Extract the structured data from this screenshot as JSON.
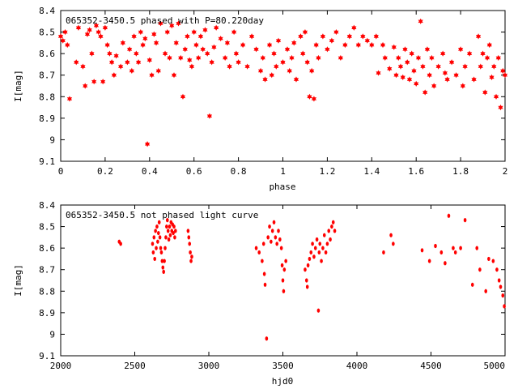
{
  "chart_data": [
    {
      "type": "scatter",
      "title": "065352-3450.5 phased with P=80.220day",
      "xlabel": "phase",
      "ylabel": "I[mag]",
      "xlim": [
        0,
        2
      ],
      "ylim": [
        8.4,
        9.1
      ],
      "y_inverted": true,
      "x_ticks": [
        "0",
        "0.2",
        "0.4",
        "0.6",
        "0.8",
        "1",
        "1.2",
        "1.4",
        "1.6",
        "1.8",
        "2"
      ],
      "y_ticks": [
        "8.4",
        "8.5",
        "8.6",
        "8.7",
        "8.8",
        "8.9",
        "9",
        "9.1"
      ],
      "marker": "star",
      "color": "#ff0000",
      "points": [
        [
          0.0,
          8.52
        ],
        [
          0.01,
          8.54
        ],
        [
          0.02,
          8.5
        ],
        [
          0.03,
          8.56
        ],
        [
          0.04,
          8.81
        ],
        [
          0.07,
          8.64
        ],
        [
          0.08,
          8.48
        ],
        [
          0.1,
          8.66
        ],
        [
          0.11,
          8.75
        ],
        [
          0.12,
          8.51
        ],
        [
          0.13,
          8.49
        ],
        [
          0.14,
          8.6
        ],
        [
          0.15,
          8.73
        ],
        [
          0.16,
          8.47
        ],
        [
          0.17,
          8.5
        ],
        [
          0.18,
          8.52
        ],
        [
          0.19,
          8.73
        ],
        [
          0.2,
          8.48
        ],
        [
          0.21,
          8.56
        ],
        [
          0.22,
          8.6
        ],
        [
          0.23,
          8.64
        ],
        [
          0.24,
          8.7
        ],
        [
          0.25,
          8.61
        ],
        [
          0.27,
          8.66
        ],
        [
          0.28,
          8.55
        ],
        [
          0.3,
          8.64
        ],
        [
          0.31,
          8.58
        ],
        [
          0.32,
          8.68
        ],
        [
          0.33,
          8.52
        ],
        [
          0.34,
          8.6
        ],
        [
          0.35,
          8.64
        ],
        [
          0.36,
          8.5
        ],
        [
          0.37,
          8.56
        ],
        [
          0.38,
          8.53
        ],
        [
          0.39,
          9.02
        ],
        [
          0.4,
          8.63
        ],
        [
          0.41,
          8.7
        ],
        [
          0.42,
          8.51
        ],
        [
          0.43,
          8.55
        ],
        [
          0.44,
          8.68
        ],
        [
          0.45,
          8.46
        ],
        [
          0.47,
          8.6
        ],
        [
          0.48,
          8.5
        ],
        [
          0.49,
          8.62
        ],
        [
          0.5,
          8.47
        ],
        [
          0.51,
          8.7
        ],
        [
          0.52,
          8.55
        ],
        [
          0.53,
          8.46
        ],
        [
          0.54,
          8.62
        ],
        [
          0.55,
          8.8
        ],
        [
          0.56,
          8.58
        ],
        [
          0.57,
          8.52
        ],
        [
          0.58,
          8.63
        ],
        [
          0.59,
          8.66
        ],
        [
          0.6,
          8.5
        ],
        [
          0.61,
          8.56
        ],
        [
          0.62,
          8.62
        ],
        [
          0.63,
          8.52
        ],
        [
          0.64,
          8.58
        ],
        [
          0.65,
          8.49
        ],
        [
          0.66,
          8.6
        ],
        [
          0.67,
          8.89
        ],
        [
          0.68,
          8.64
        ],
        [
          0.69,
          8.57
        ],
        [
          0.7,
          8.48
        ],
        [
          0.72,
          8.53
        ],
        [
          0.74,
          8.62
        ],
        [
          0.75,
          8.55
        ],
        [
          0.76,
          8.66
        ],
        [
          0.78,
          8.5
        ],
        [
          0.79,
          8.6
        ],
        [
          0.8,
          8.64
        ],
        [
          0.82,
          8.56
        ],
        [
          0.84,
          8.66
        ],
        [
          0.86,
          8.52
        ],
        [
          0.88,
          8.58
        ],
        [
          0.9,
          8.68
        ],
        [
          0.91,
          8.62
        ],
        [
          0.92,
          8.72
        ],
        [
          0.94,
          8.56
        ],
        [
          0.95,
          8.7
        ],
        [
          0.96,
          8.6
        ],
        [
          0.97,
          8.66
        ],
        [
          0.98,
          8.54
        ],
        [
          1.0,
          8.64
        ],
        [
          1.02,
          8.58
        ],
        [
          1.03,
          8.68
        ],
        [
          1.04,
          8.62
        ],
        [
          1.05,
          8.55
        ],
        [
          1.06,
          8.72
        ],
        [
          1.08,
          8.52
        ],
        [
          1.09,
          8.6
        ],
        [
          1.1,
          8.5
        ],
        [
          1.11,
          8.64
        ],
        [
          1.12,
          8.8
        ],
        [
          1.13,
          8.68
        ],
        [
          1.14,
          8.81
        ],
        [
          1.15,
          8.56
        ],
        [
          1.16,
          8.62
        ],
        [
          1.18,
          8.52
        ],
        [
          1.2,
          8.58
        ],
        [
          1.22,
          8.54
        ],
        [
          1.24,
          8.5
        ],
        [
          1.26,
          8.62
        ],
        [
          1.28,
          8.56
        ],
        [
          1.3,
          8.52
        ],
        [
          1.32,
          8.48
        ],
        [
          1.34,
          8.56
        ],
        [
          1.36,
          8.52
        ],
        [
          1.38,
          8.54
        ],
        [
          1.4,
          8.56
        ],
        [
          1.42,
          8.52
        ],
        [
          1.43,
          8.69
        ],
        [
          1.45,
          8.56
        ],
        [
          1.46,
          8.62
        ],
        [
          1.48,
          8.67
        ],
        [
          1.5,
          8.57
        ],
        [
          1.51,
          8.7
        ],
        [
          1.52,
          8.62
        ],
        [
          1.53,
          8.66
        ],
        [
          1.54,
          8.71
        ],
        [
          1.55,
          8.58
        ],
        [
          1.56,
          8.64
        ],
        [
          1.57,
          8.72
        ],
        [
          1.58,
          8.6
        ],
        [
          1.59,
          8.68
        ],
        [
          1.6,
          8.74
        ],
        [
          1.61,
          8.62
        ],
        [
          1.62,
          8.45
        ],
        [
          1.63,
          8.66
        ],
        [
          1.64,
          8.78
        ],
        [
          1.65,
          8.58
        ],
        [
          1.66,
          8.7
        ],
        [
          1.67,
          8.62
        ],
        [
          1.68,
          8.75
        ],
        [
          1.7,
          8.66
        ],
        [
          1.72,
          8.6
        ],
        [
          1.73,
          8.69
        ],
        [
          1.74,
          8.72
        ],
        [
          1.76,
          8.64
        ],
        [
          1.78,
          8.7
        ],
        [
          1.8,
          8.58
        ],
        [
          1.81,
          8.75
        ],
        [
          1.82,
          8.66
        ],
        [
          1.84,
          8.6
        ],
        [
          1.86,
          8.72
        ],
        [
          1.88,
          8.52
        ],
        [
          1.89,
          8.66
        ],
        [
          1.9,
          8.6
        ],
        [
          1.91,
          8.78
        ],
        [
          1.92,
          8.62
        ],
        [
          1.93,
          8.56
        ],
        [
          1.94,
          8.71
        ],
        [
          1.95,
          8.66
        ],
        [
          1.96,
          8.8
        ],
        [
          1.97,
          8.62
        ],
        [
          1.98,
          8.85
        ],
        [
          1.99,
          8.68
        ],
        [
          2.0,
          8.7
        ]
      ]
    },
    {
      "type": "scatter",
      "title": "065352-3450.5 not phased light curve",
      "xlabel": "hjd0",
      "ylabel": "I[mag]",
      "xlim": [
        2000,
        5000
      ],
      "ylim": [
        8.4,
        9.1
      ],
      "y_inverted": true,
      "x_ticks": [
        "2000",
        "2500",
        "3000",
        "3500",
        "4000",
        "4500",
        "5000"
      ],
      "y_ticks": [
        "8.4",
        "8.5",
        "8.6",
        "8.7",
        "8.8",
        "8.9",
        "9",
        "9.1"
      ],
      "marker": "dot",
      "color": "#ff0000",
      "points": [
        [
          2395,
          8.57
        ],
        [
          2405,
          8.58
        ],
        [
          2620,
          8.58
        ],
        [
          2625,
          8.62
        ],
        [
          2630,
          8.55
        ],
        [
          2635,
          8.65
        ],
        [
          2640,
          8.52
        ],
        [
          2645,
          8.6
        ],
        [
          2650,
          8.5
        ],
        [
          2655,
          8.57
        ],
        [
          2660,
          8.53
        ],
        [
          2665,
          8.48
        ],
        [
          2670,
          8.55
        ],
        [
          2675,
          8.6
        ],
        [
          2680,
          8.62
        ],
        [
          2685,
          8.66
        ],
        [
          2690,
          8.69
        ],
        [
          2695,
          8.71
        ],
        [
          2700,
          8.66
        ],
        [
          2705,
          8.6
        ],
        [
          2710,
          8.55
        ],
        [
          2715,
          8.5
        ],
        [
          2720,
          8.47
        ],
        [
          2725,
          8.52
        ],
        [
          2730,
          8.56
        ],
        [
          2735,
          8.5
        ],
        [
          2740,
          8.54
        ],
        [
          2745,
          8.48
        ],
        [
          2750,
          8.52
        ],
        [
          2755,
          8.49
        ],
        [
          2760,
          8.53
        ],
        [
          2765,
          8.5
        ],
        [
          2770,
          8.55
        ],
        [
          2775,
          8.52
        ],
        [
          2860,
          8.52
        ],
        [
          2865,
          8.55
        ],
        [
          2870,
          8.58
        ],
        [
          2875,
          8.62
        ],
        [
          2880,
          8.66
        ],
        [
          2885,
          8.64
        ],
        [
          3320,
          8.6
        ],
        [
          3340,
          8.62
        ],
        [
          3360,
          8.66
        ],
        [
          3370,
          8.58
        ],
        [
          3375,
          8.72
        ],
        [
          3380,
          8.77
        ],
        [
          3390,
          9.02
        ],
        [
          3400,
          8.55
        ],
        [
          3410,
          8.5
        ],
        [
          3420,
          8.57
        ],
        [
          3430,
          8.52
        ],
        [
          3440,
          8.48
        ],
        [
          3450,
          8.55
        ],
        [
          3460,
          8.58
        ],
        [
          3470,
          8.52
        ],
        [
          3480,
          8.56
        ],
        [
          3490,
          8.6
        ],
        [
          3495,
          8.68
        ],
        [
          3500,
          8.75
        ],
        [
          3505,
          8.8
        ],
        [
          3510,
          8.7
        ],
        [
          3520,
          8.66
        ],
        [
          3650,
          8.7
        ],
        [
          3660,
          8.75
        ],
        [
          3665,
          8.78
        ],
        [
          3670,
          8.68
        ],
        [
          3680,
          8.65
        ],
        [
          3690,
          8.62
        ],
        [
          3700,
          8.58
        ],
        [
          3710,
          8.64
        ],
        [
          3720,
          8.6
        ],
        [
          3730,
          8.56
        ],
        [
          3740,
          8.89
        ],
        [
          3745,
          8.62
        ],
        [
          3750,
          8.58
        ],
        [
          3760,
          8.66
        ],
        [
          3770,
          8.6
        ],
        [
          3780,
          8.54
        ],
        [
          3790,
          8.62
        ],
        [
          3800,
          8.58
        ],
        [
          3810,
          8.52
        ],
        [
          3820,
          8.56
        ],
        [
          3830,
          8.5
        ],
        [
          3840,
          8.48
        ],
        [
          3850,
          8.52
        ],
        [
          4180,
          8.62
        ],
        [
          4230,
          8.54
        ],
        [
          4245,
          8.58
        ],
        [
          4440,
          8.61
        ],
        [
          4490,
          8.66
        ],
        [
          4530,
          8.59
        ],
        [
          4570,
          8.62
        ],
        [
          4595,
          8.67
        ],
        [
          4620,
          8.45
        ],
        [
          4650,
          8.6
        ],
        [
          4665,
          8.62
        ],
        [
          4700,
          8.6
        ],
        [
          4730,
          8.47
        ],
        [
          4780,
          8.77
        ],
        [
          4810,
          8.6
        ],
        [
          4830,
          8.7
        ],
        [
          4870,
          8.8
        ],
        [
          4890,
          8.65
        ],
        [
          4920,
          8.66
        ],
        [
          4945,
          8.7
        ],
        [
          4960,
          8.75
        ],
        [
          4970,
          8.78
        ],
        [
          4985,
          8.82
        ],
        [
          4995,
          8.87
        ]
      ]
    }
  ]
}
